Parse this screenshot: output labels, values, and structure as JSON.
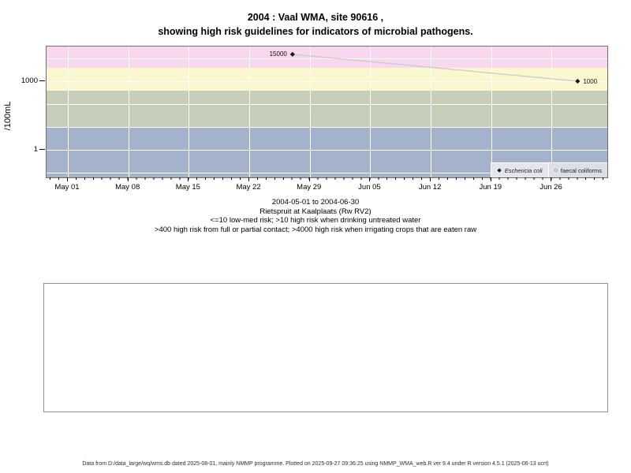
{
  "title": {
    "line1": "2004 : Vaal WMA, site 90616 ,",
    "line2": "showing high risk guidelines for indicators of microbial pathogens."
  },
  "chart_data": {
    "type": "scatter",
    "title": "2004 : Vaal WMA, site 90616 , showing high risk guidelines for indicators of microbial pathogens.",
    "xlabel": "",
    "ylabel": "/100mL",
    "y_scale": "log10",
    "ylim": [
      0.06,
      30000
    ],
    "x_range": [
      "2004-05-01",
      "2004-06-30"
    ],
    "y_ticks": [
      {
        "value": 1000,
        "label": "1000"
      },
      {
        "value": 1,
        "label": "1"
      }
    ],
    "y_gridline_values": [
      10000,
      1000,
      100,
      10,
      1,
      0.1
    ],
    "x_ticks": [
      {
        "date": "2004-05-01",
        "label": "May 01"
      },
      {
        "date": "2004-05-08",
        "label": "May 08"
      },
      {
        "date": "2004-05-15",
        "label": "May 15"
      },
      {
        "date": "2004-05-22",
        "label": "May 22"
      },
      {
        "date": "2004-05-29",
        "label": "May 29"
      },
      {
        "date": "2004-06-05",
        "label": "Jun 05"
      },
      {
        "date": "2004-06-12",
        "label": "Jun 12"
      },
      {
        "date": "2004-06-19",
        "label": "Jun 19"
      },
      {
        "date": "2004-06-26",
        "label": "Jun 26"
      }
    ],
    "risk_bands": [
      {
        "name": "high risk when irrigating crops eaten raw",
        "min": 4000,
        "max": null,
        "color": "#f8d7ef"
      },
      {
        "name": "high risk from full or partial contact",
        "min": 400,
        "max": 4000,
        "color": "#fbf7cf"
      },
      {
        "name": "high risk when drinking untreated water",
        "min": 10,
        "max": 400,
        "color": "#c6cdb8"
      },
      {
        "name": "low-med risk",
        "min": null,
        "max": 10,
        "color": "#a4b2cc"
      }
    ],
    "series": [
      {
        "name": "Eschericia coli",
        "marker": "filled-diamond",
        "line_color": "#cbcbcb",
        "marker_color": "#1a1a1a",
        "points": [
          {
            "date": "2004-05-27",
            "value": 15000,
            "label": "15000",
            "label_side": "left"
          },
          {
            "date": "2004-06-29",
            "value": 1000,
            "label": "1000",
            "label_side": "right"
          }
        ]
      },
      {
        "name": "faecal coliforms",
        "marker": "open-circle",
        "line_color": "#cbcbcb",
        "marker_color": "#1a1a1a",
        "points": []
      }
    ],
    "legend": {
      "position": "bottom-right-inside",
      "items": [
        {
          "label": "Eschericia coli",
          "glyph": "◆",
          "italic": true
        },
        {
          "label": "faecal coliforms",
          "glyph": "○",
          "italic": false
        }
      ]
    }
  },
  "caption": {
    "line1": "2004-05-01 to 2004-06-30",
    "line2": "Rietspruit at Kaalplaats (Rw RV2)",
    "line3": "<=10 low-med risk; >10 high risk when drinking untreated water",
    "line4": ">400 high risk from full or partial contact; >4000 high risk when irrigating crops that are eaten raw"
  },
  "footer": "Data from D:/data_large/wq/wms.db dated 2025-08-01, mainly NMMP programme. Plotted on 2025-09-27 09:36:25 using NMMP_WMA_web.R ver 9.4 under R version 4.5.1 (2025-06-13 ucrt)"
}
